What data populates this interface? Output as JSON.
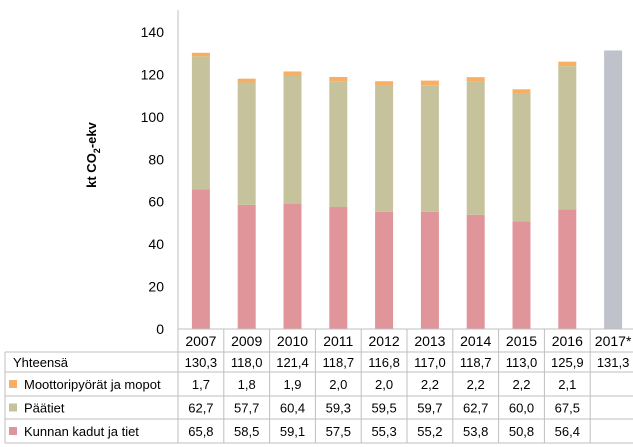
{
  "chart_data": {
    "type": "bar",
    "stacked": true,
    "categories": [
      "2007",
      "2009",
      "2010",
      "2011",
      "2012",
      "2013",
      "2014",
      "2015",
      "2016",
      "2017*"
    ],
    "ylabel_main": "kt CO",
    "ylabel_sub": "2",
    "ylabel_suffix": "-ekv",
    "ylim": [
      0,
      140
    ],
    "yticks": [
      0,
      20,
      40,
      60,
      80,
      100,
      120,
      140
    ],
    "grid": false,
    "series": [
      {
        "name": "Kunnan kadut ja tiet",
        "color": "#e0959a",
        "values": [
          65.8,
          58.5,
          59.1,
          57.5,
          55.3,
          55.2,
          53.8,
          50.8,
          56.4,
          null
        ],
        "labels": [
          "65,8",
          "58,5",
          "59,1",
          "57,5",
          "55,3",
          "55,2",
          "53,8",
          "50,8",
          "56,4",
          ""
        ]
      },
      {
        "name": "Päätiet",
        "color": "#c6c39c",
        "values": [
          62.7,
          57.7,
          60.4,
          59.3,
          59.5,
          59.7,
          62.7,
          60.0,
          67.5,
          null
        ],
        "labels": [
          "62,7",
          "57,7",
          "60,4",
          "59,3",
          "59,5",
          "59,7",
          "62,7",
          "60,0",
          "67,5",
          ""
        ]
      },
      {
        "name": "Moottoripyörät ja mopot",
        "color": "#f7b063",
        "values": [
          1.7,
          1.8,
          1.9,
          2.0,
          2.0,
          2.2,
          2.2,
          2.2,
          2.1,
          null
        ],
        "labels": [
          "1,7",
          "1,8",
          "1,9",
          "2,0",
          "2,0",
          "2,2",
          "2,2",
          "2,2",
          "2,1",
          ""
        ]
      }
    ],
    "total": {
      "name": "Yhteensä",
      "color": "#bfc2cb",
      "values": [
        130.3,
        118.0,
        121.4,
        118.7,
        116.8,
        117.0,
        118.7,
        113.0,
        125.9,
        131.3
      ],
      "labels": [
        "130,3",
        "118,0",
        "121,4",
        "118,7",
        "116,8",
        "117,0",
        "118,7",
        "113,0",
        "125,9",
        "131,3"
      ]
    },
    "table_rows": [
      "Yhteensä",
      "Moottoripyörät ja mopot",
      "Päätiet",
      "Kunnan kadut ja tiet"
    ]
  }
}
